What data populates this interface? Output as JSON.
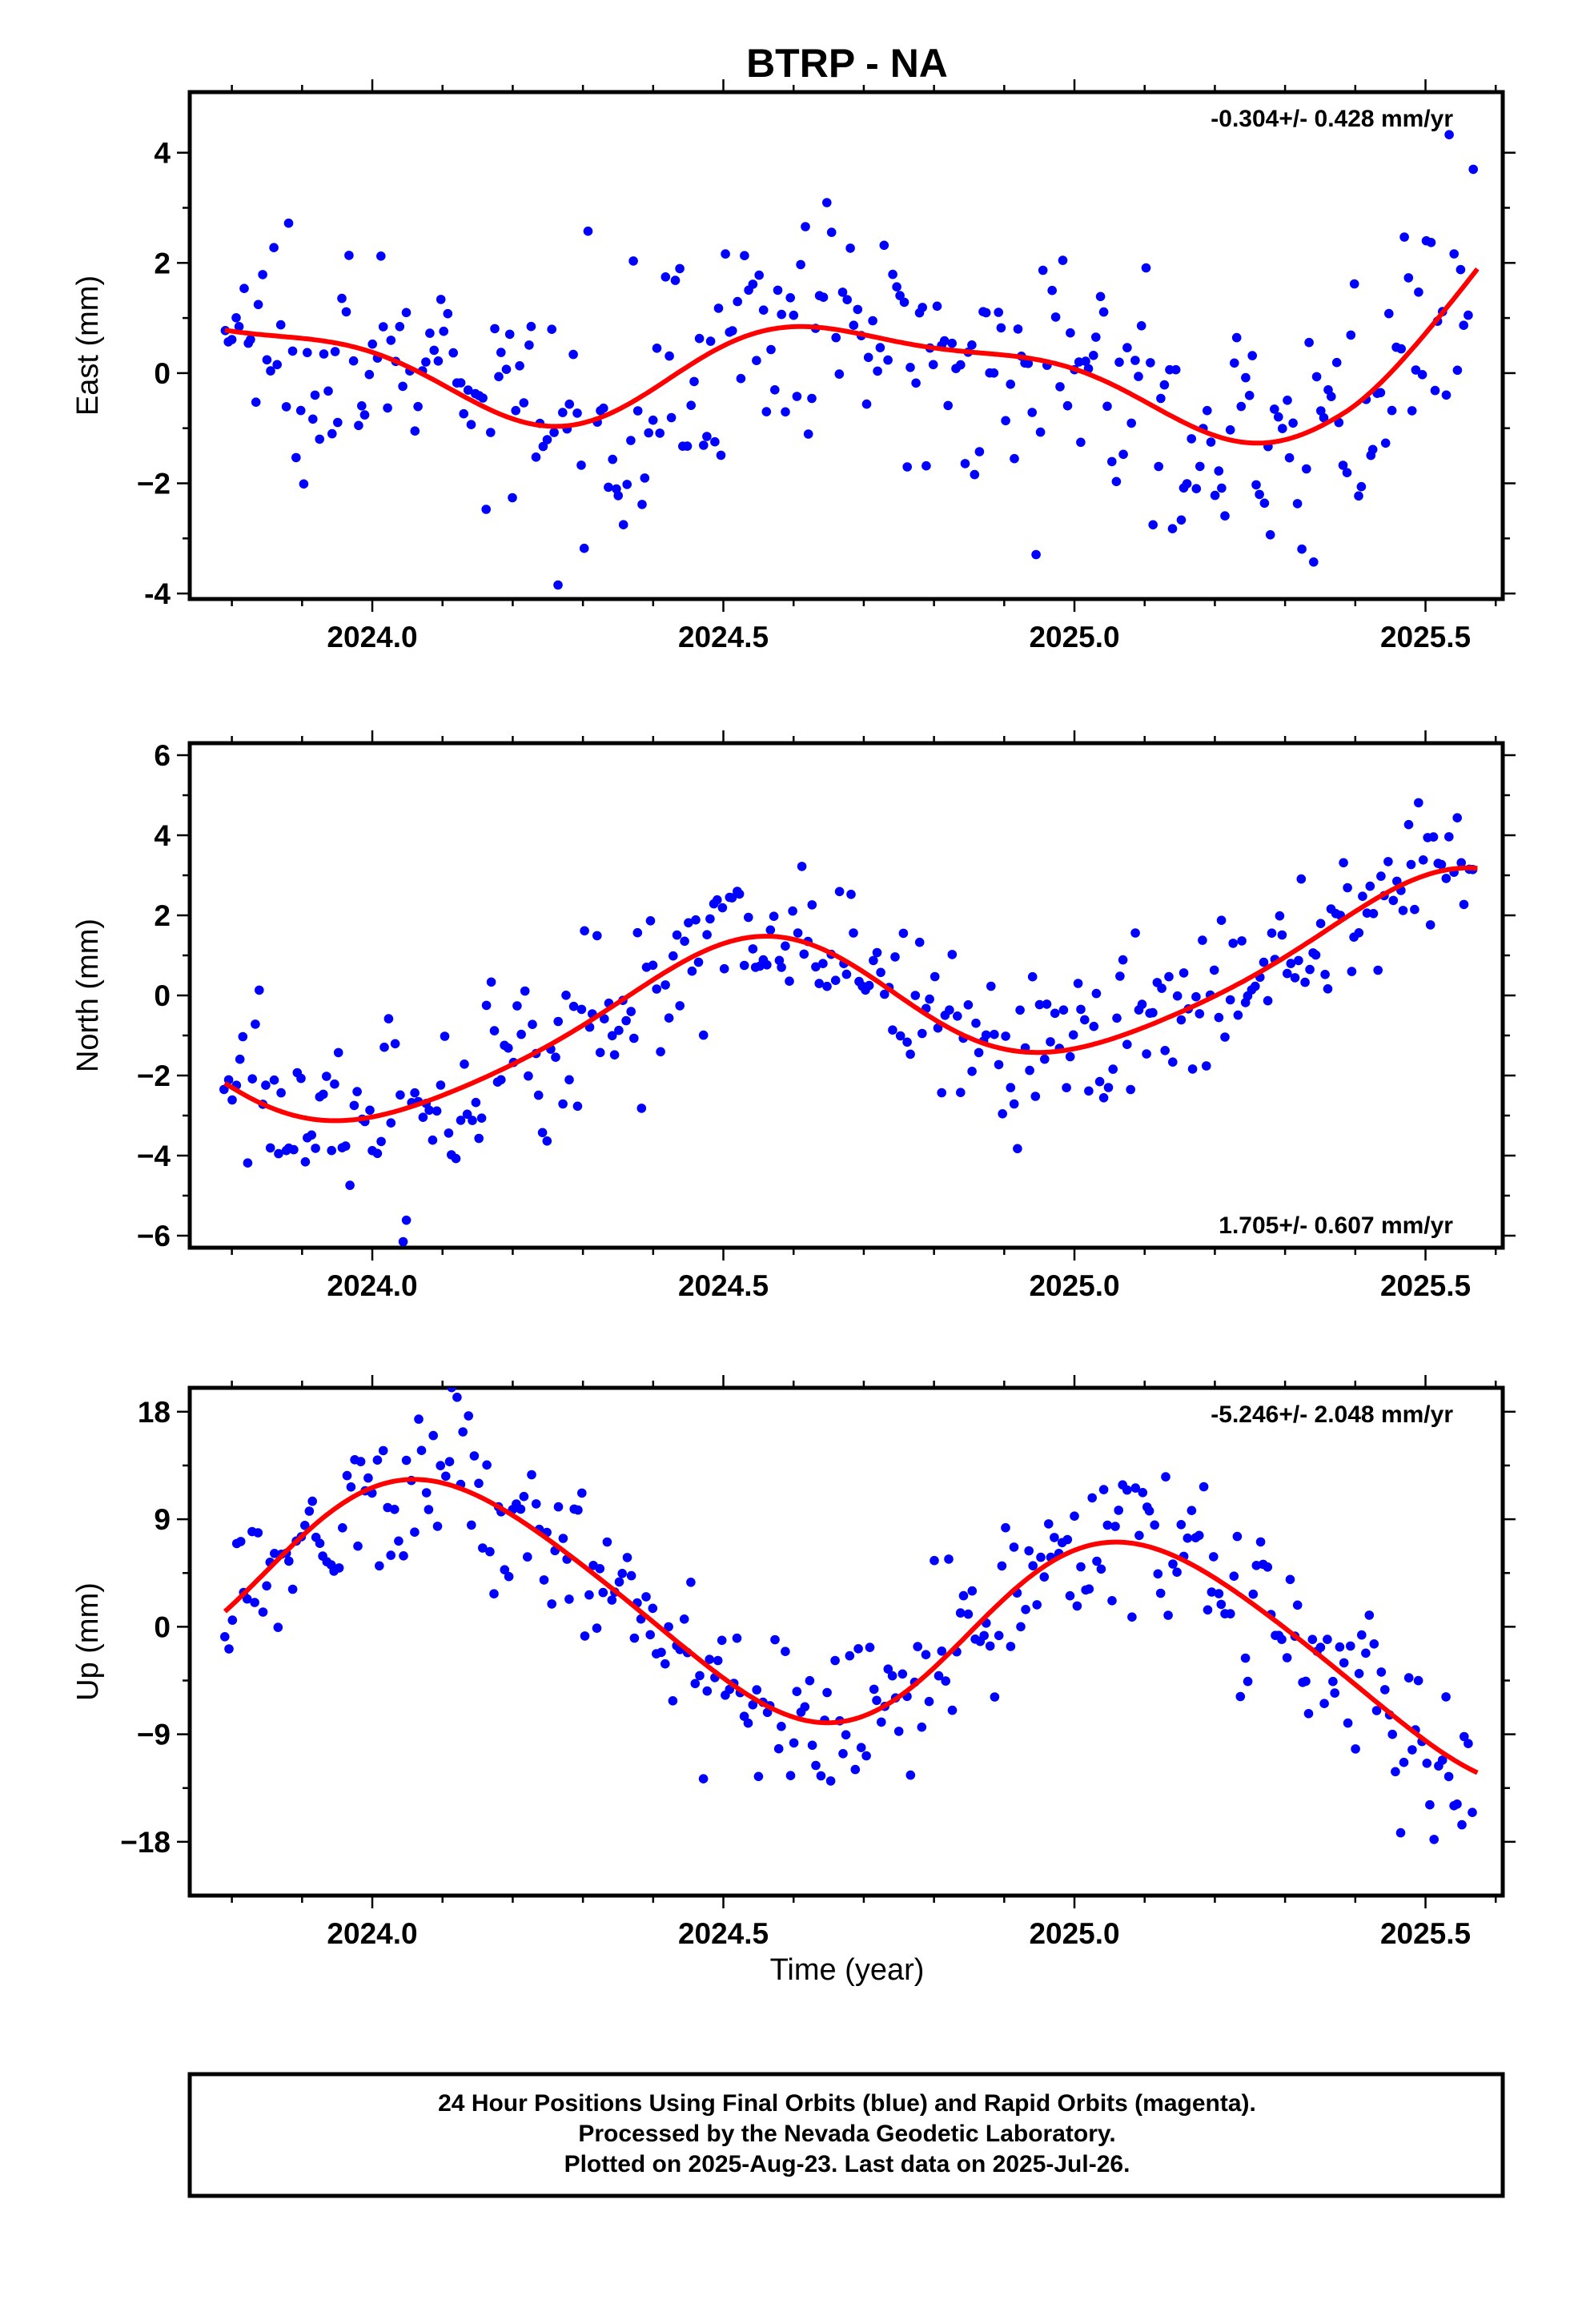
{
  "title": "BTRP - NA",
  "colors": {
    "points": "#0000ff",
    "fit": "#ff0000",
    "frame": "#000000"
  },
  "chart_data": [
    {
      "type": "scatter",
      "id": "east",
      "ylabel": "East (mm)",
      "rate_label": "-0.304+/- 0.428 mm/yr",
      "rate_position": "top-right",
      "xlim": [
        2023.74,
        2025.61
      ],
      "ylim": [
        -4.1,
        5.1
      ],
      "xticks": [
        {
          "v": 2024.0,
          "label": "2024.0"
        },
        {
          "v": 2024.5,
          "label": "2024.5"
        },
        {
          "v": 2025.0,
          "label": "2025.0"
        },
        {
          "v": 2025.5,
          "label": "2025.5"
        }
      ],
      "yticks": [
        {
          "v": 4,
          "label": "4"
        },
        {
          "v": 2,
          "label": "2"
        },
        {
          "v": 0,
          "label": "0"
        },
        {
          "v": -2,
          "label": "−2"
        },
        {
          "v": -4,
          "label": "-4"
        }
      ],
      "x_start": 2023.79,
      "x_step": 0.0054,
      "count": 330,
      "fit": {
        "series": "red curve",
        "offset": 0.02,
        "rate": -0.304,
        "annual_amp": 0.85,
        "annual_phase": 3.3,
        "semi_amp": 0.3,
        "semi_phase": 1.2,
        "tail_rise": 1.4
      },
      "noise": 1.05
    },
    {
      "type": "scatter",
      "id": "north",
      "ylabel": "North (mm)",
      "rate_label": "1.705+/- 0.607 mm/yr",
      "rate_position": "bottom-right",
      "xlim": [
        2023.74,
        2025.61
      ],
      "ylim": [
        -6.3,
        6.3
      ],
      "xticks": [
        {
          "v": 2024.0,
          "label": "2024.0"
        },
        {
          "v": 2024.5,
          "label": "2024.5"
        },
        {
          "v": 2025.0,
          "label": "2025.0"
        },
        {
          "v": 2025.5,
          "label": "2025.5"
        }
      ],
      "yticks": [
        {
          "v": 6,
          "label": "6"
        },
        {
          "v": 4,
          "label": "4"
        },
        {
          "v": 2,
          "label": "2"
        },
        {
          "v": 0,
          "label": "0"
        },
        {
          "v": -2,
          "label": "−2"
        },
        {
          "v": -4,
          "label": "−4"
        },
        {
          "v": -6,
          "label": "−6"
        }
      ],
      "x_start": 2023.79,
      "x_step": 0.0054,
      "count": 330,
      "fit": {
        "series": "red curve",
        "offset": -0.2,
        "rate": 1.705,
        "annual_amp": 1.75,
        "annual_phase": 4.6,
        "semi_amp": 0.25,
        "semi_phase": 0.4,
        "tail_rise": 0
      },
      "noise": 1.1
    },
    {
      "type": "scatter",
      "id": "up",
      "ylabel": "Up (mm)",
      "rate_label": "-5.246+/- 2.048 mm/yr",
      "rate_position": "top-right",
      "xlim": [
        2023.74,
        2025.61
      ],
      "ylim": [
        -22.5,
        20.0
      ],
      "xticks": [
        {
          "v": 2024.0,
          "label": "2024.0"
        },
        {
          "v": 2024.5,
          "label": "2024.5"
        },
        {
          "v": 2025.0,
          "label": "2025.0"
        },
        {
          "v": 2025.5,
          "label": "2025.5"
        }
      ],
      "yticks": [
        {
          "v": 18,
          "label": "18"
        },
        {
          "v": 9,
          "label": "9"
        },
        {
          "v": 0,
          "label": "0"
        },
        {
          "v": -9,
          "label": "−9"
        },
        {
          "v": -18,
          "label": "−18"
        }
      ],
      "x_start": 2023.79,
      "x_step": 0.0054,
      "count": 330,
      "fit": {
        "series": "red curve",
        "offset": 0.5,
        "rate": -5.246,
        "annual_amp": 8.5,
        "annual_phase": 0.9,
        "semi_amp": 0.9,
        "semi_phase": 2.0,
        "tail_rise": 0
      },
      "noise": 3.4
    }
  ],
  "xlabel": "Time (year)",
  "footer": {
    "line1": "24 Hour Positions Using Final Orbits (blue) and Rapid Orbits (magenta).",
    "line2": "Processed by the Nevada Geodetic Laboratory.",
    "line3": "Plotted on 2025-Aug-23. Last data on 2025-Jul-26."
  }
}
